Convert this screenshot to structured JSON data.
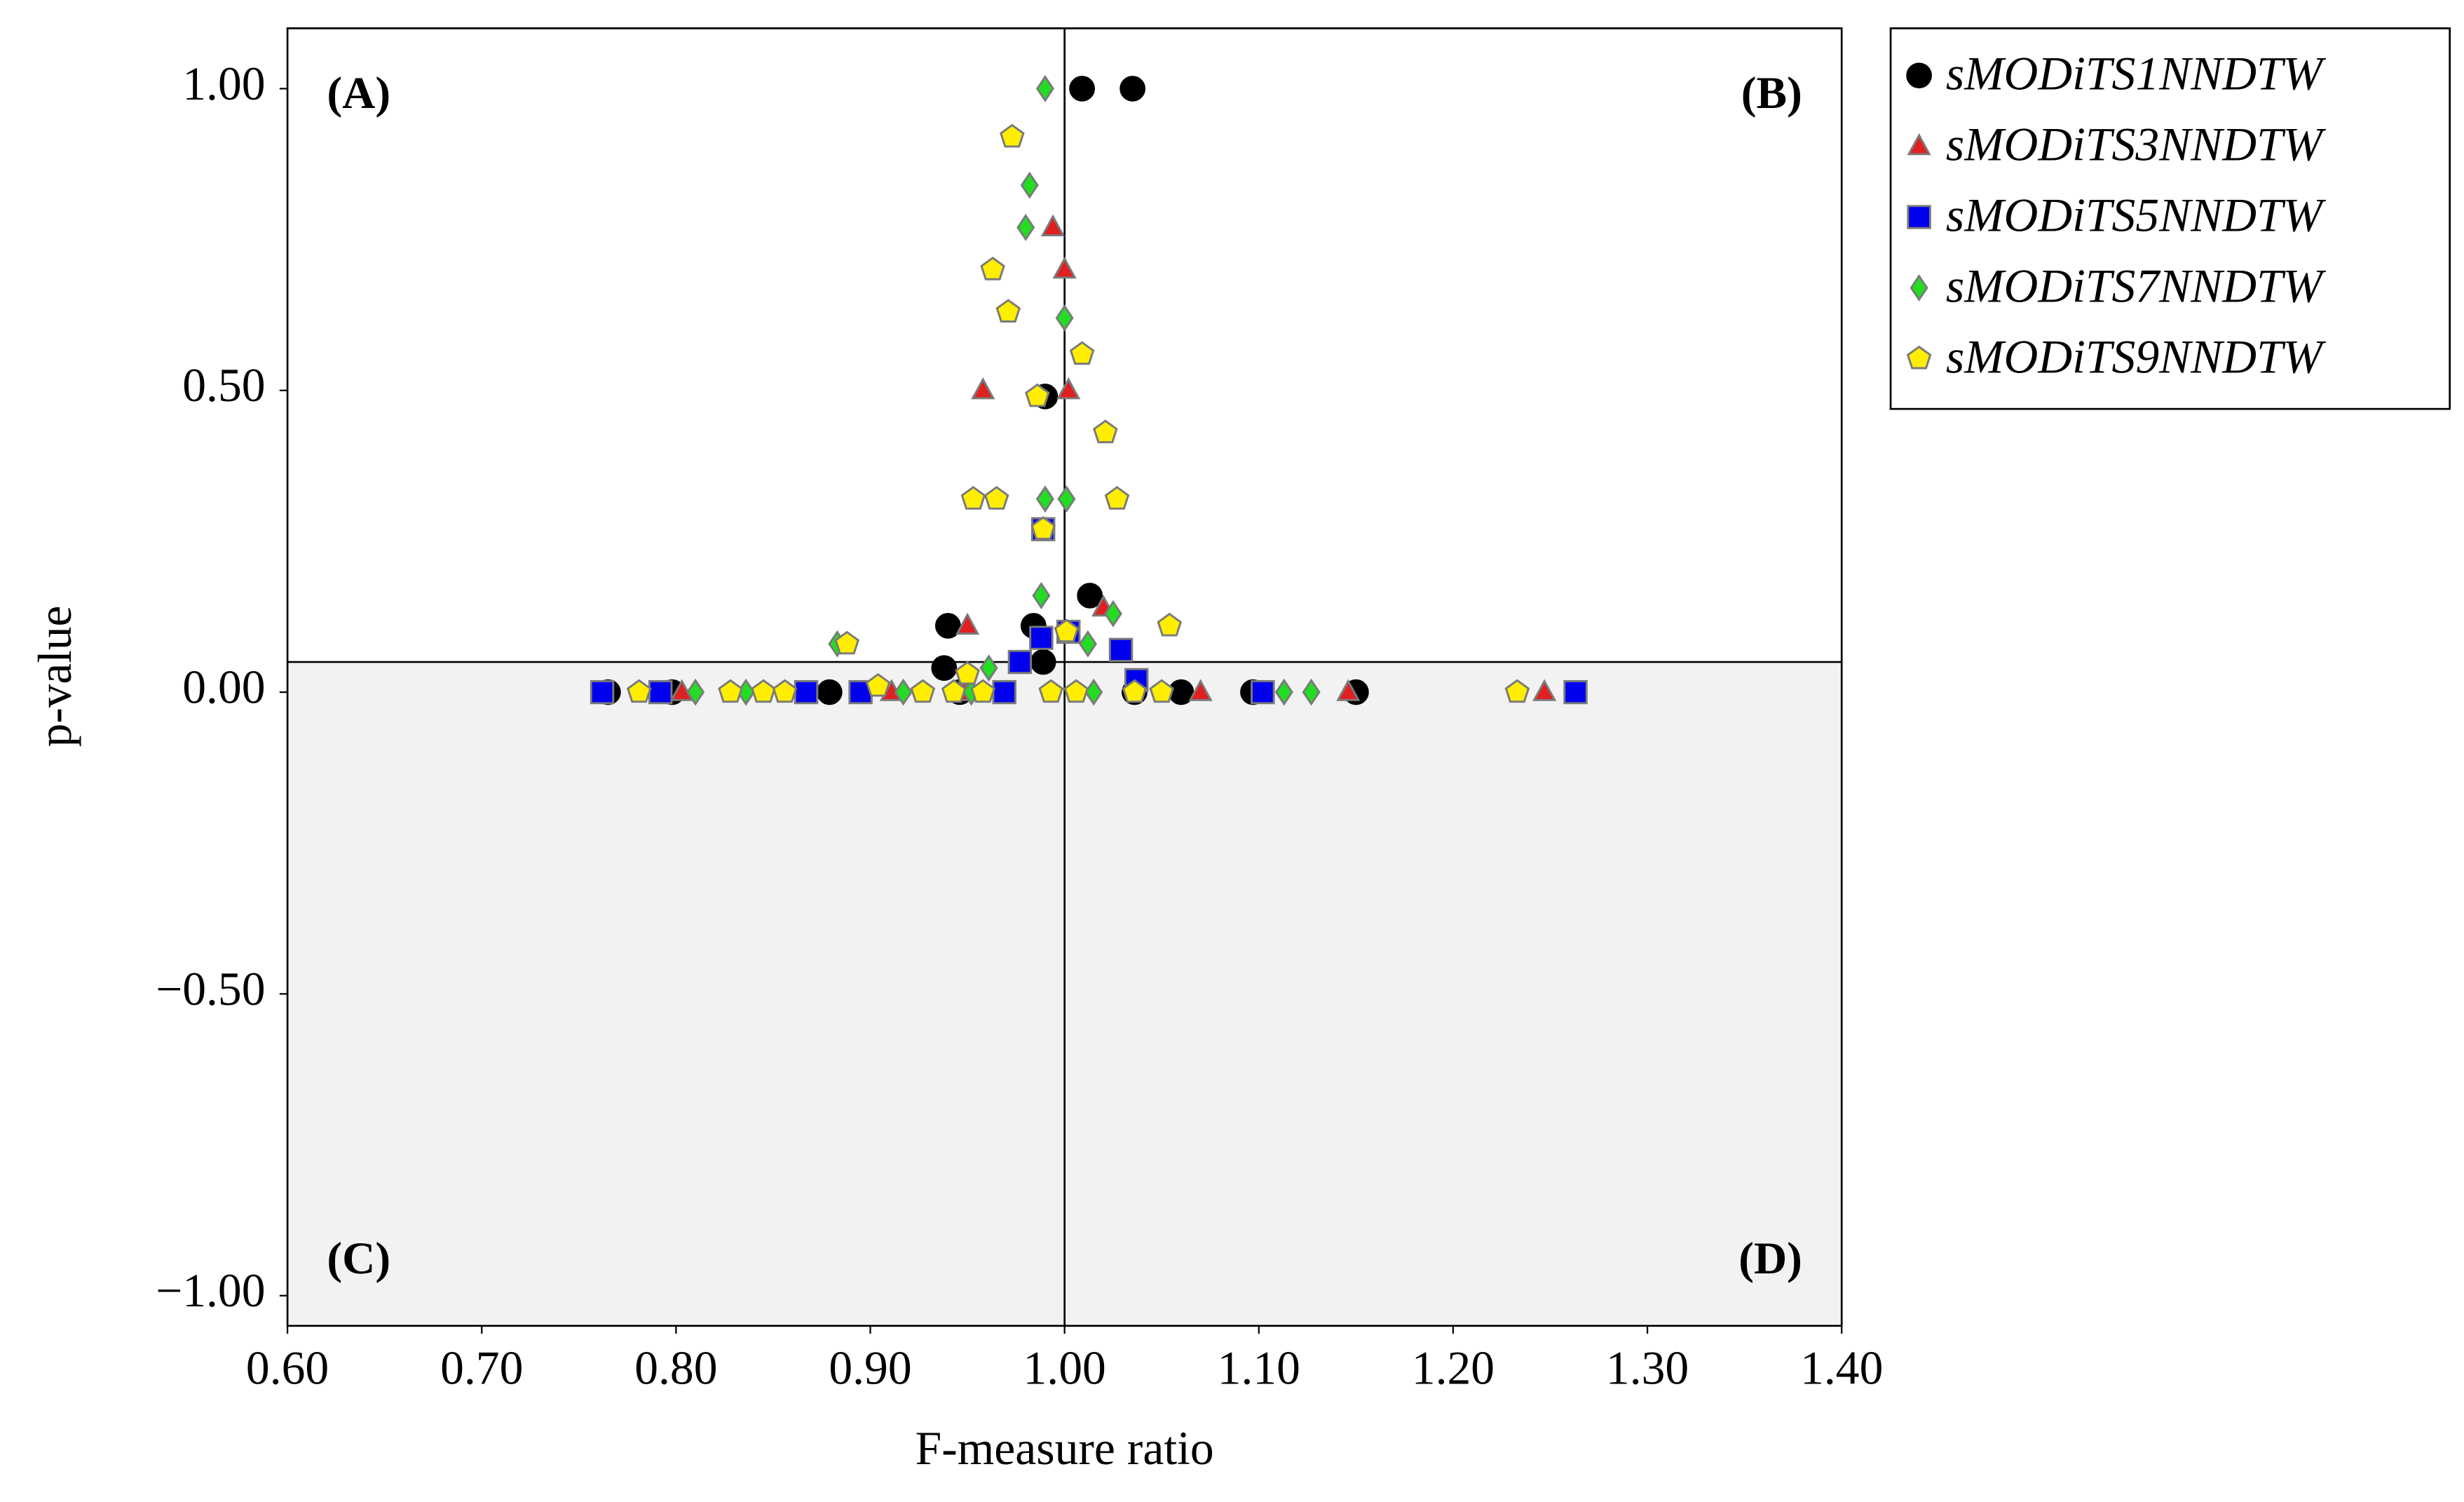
{
  "chart_data": {
    "type": "scatter",
    "x_label": "F-measure ratio",
    "y_label": "p-value",
    "xlim": [
      0.6,
      1.4
    ],
    "xticks": [
      {
        "value": 0.6,
        "label": "0.60"
      },
      {
        "value": 0.7,
        "label": "0.70"
      },
      {
        "value": 0.8,
        "label": "0.80"
      },
      {
        "value": 0.9,
        "label": "0.90"
      },
      {
        "value": 1.0,
        "label": "1.00"
      },
      {
        "value": 1.1,
        "label": "1.10"
      },
      {
        "value": 1.2,
        "label": "1.20"
      },
      {
        "value": 1.3,
        "label": "1.30"
      },
      {
        "value": 1.4,
        "label": "1.40"
      }
    ],
    "ylim": [
      -1.05,
      1.1
    ],
    "yticks": [
      {
        "value": 1.0,
        "label": "1.00"
      },
      {
        "value": 0.5,
        "label": "0.50"
      },
      {
        "value": 0.0,
        "label": "0.00"
      },
      {
        "value": -0.5,
        "label": "−0.50"
      },
      {
        "value": -1.0,
        "label": "−1.00"
      }
    ],
    "reference_lines": {
      "x": 1.0,
      "y": 0.05
    },
    "annotations": [
      "(A)",
      "(B)",
      "(C)",
      "(D)"
    ],
    "series": [
      {
        "name": "sMODiTS1NNDTW",
        "color": "#000000",
        "marker": "circle",
        "x": [
          1.009,
          1.035,
          0.99,
          1.013,
          0.94,
          0.984,
          0.938,
          0.989,
          0.765,
          0.798,
          0.879,
          0.946,
          1.036,
          1.06,
          1.097,
          1.15
        ],
        "values": [
          1.0,
          1.0,
          0.49,
          0.16,
          0.11,
          0.11,
          0.04,
          0.05,
          0,
          0,
          0,
          0,
          0,
          0,
          0,
          0
        ]
      },
      {
        "name": "sMODiTS3NNDTW",
        "color": "#e02020",
        "marker": "triangle",
        "x": [
          0.994,
          1.0,
          0.958,
          1.002,
          0.95,
          1.02,
          0.803,
          1.07,
          1.146,
          1.247,
          0.948,
          0.911
        ],
        "values": [
          0.77,
          0.7,
          0.5,
          0.5,
          0.11,
          0.14,
          0,
          0,
          0,
          0,
          0,
          0
        ]
      },
      {
        "name": "sMODiTS5NNDTW",
        "color": "#0000ee",
        "marker": "square",
        "x": [
          0.989,
          0.988,
          1.002,
          1.029,
          0.977,
          1.037,
          0.762,
          0.792,
          0.867,
          0.895,
          0.969,
          1.102,
          1.263
        ],
        "values": [
          0.27,
          0.09,
          0.1,
          0.07,
          0.05,
          0.02,
          0,
          0,
          0,
          0,
          0,
          0,
          0
        ]
      },
      {
        "name": "sMODiTS7NNDTW",
        "color": "#22dd22",
        "marker": "diamond",
        "x": [
          0.99,
          0.982,
          0.98,
          1.0,
          0.99,
          1.001,
          0.988,
          1.025,
          1.012,
          0.883,
          0.961,
          0.81,
          0.836,
          0.917,
          1.015,
          1.113,
          1.127,
          0.952
        ],
        "values": [
          1.0,
          0.84,
          0.77,
          0.62,
          0.32,
          0.32,
          0.16,
          0.13,
          0.08,
          0.08,
          0.04,
          0,
          0,
          0,
          0,
          0,
          0,
          0
        ]
      },
      {
        "name": "sMODiTS9NNDTW",
        "color": "#ffee00",
        "marker": "pentagon",
        "x": [
          0.973,
          0.963,
          0.971,
          1.009,
          0.986,
          1.021,
          0.953,
          0.965,
          1.027,
          0.989,
          1.054,
          0.888,
          1.001,
          0.95,
          0.904,
          0.781,
          0.828,
          0.845,
          0.856,
          0.927,
          0.943,
          0.958,
          0.993,
          1.006,
          1.036,
          1.05,
          1.233
        ],
        "values": [
          0.92,
          0.7,
          0.63,
          0.56,
          0.49,
          0.43,
          0.32,
          0.32,
          0.32,
          0.27,
          0.11,
          0.08,
          0.1,
          0.03,
          0.01,
          0,
          0,
          0,
          0,
          0,
          0,
          0,
          0,
          0,
          0,
          0,
          0
        ]
      }
    ]
  }
}
